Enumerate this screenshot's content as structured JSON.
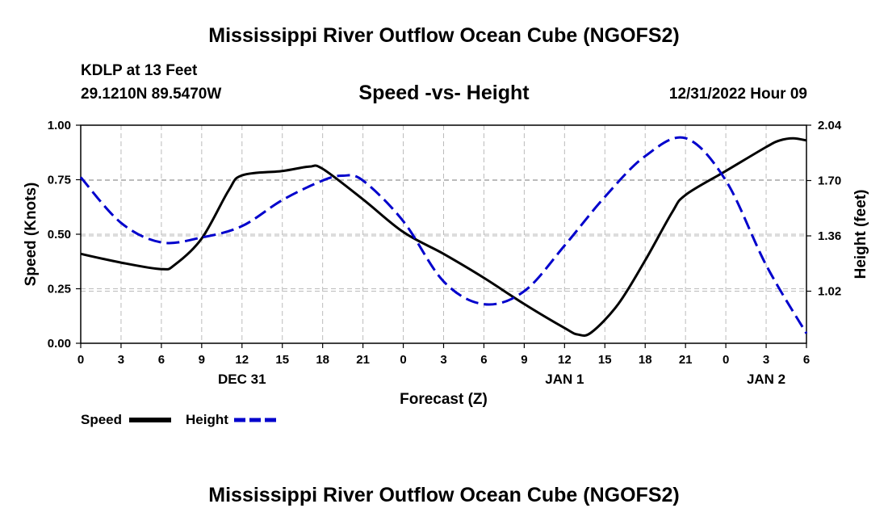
{
  "page": {
    "title_top": "Mississippi River Outflow Ocean Cube (NGOFS2)",
    "title_bottom": "Mississippi River Outflow Ocean Cube (NGOFS2)",
    "station": "KDLP at 13 Feet",
    "coords": "29.1210N  89.5470W",
    "datetime": "12/31/2022 Hour 09"
  },
  "colors": {
    "speed": "#000000",
    "height": "#0000cc",
    "grid": "#bbbbbb"
  },
  "chart_data": {
    "type": "line",
    "title": "Speed -vs- Height",
    "xlabel": "Forecast (Z)",
    "ylabel": "Speed (Knots)",
    "y2label": "Height (feet)",
    "xlim": [
      0,
      54
    ],
    "ylim": [
      0,
      1
    ],
    "y2lim": [
      0.7,
      2.04
    ],
    "x_ticks": [
      0,
      3,
      6,
      9,
      12,
      15,
      18,
      21,
      24,
      27,
      30,
      33,
      36,
      39,
      42,
      45,
      48,
      51,
      54
    ],
    "x_tick_labels": [
      "0",
      "3",
      "6",
      "9",
      "12",
      "15",
      "18",
      "21",
      "0",
      "3",
      "6",
      "9",
      "12",
      "15",
      "18",
      "21",
      "0",
      "3",
      "6"
    ],
    "date_labels": [
      {
        "x": 12,
        "label": "DEC 31"
      },
      {
        "x": 36,
        "label": "JAN 1"
      },
      {
        "x": 51,
        "label": "JAN 2"
      }
    ],
    "y_ticks": [
      0,
      0.25,
      0.5,
      0.75,
      1.0
    ],
    "y_tick_labels": [
      "0.00",
      "0.25",
      "0.50",
      "0.75",
      "1.00"
    ],
    "y2_ticks": [
      1.02,
      1.36,
      1.7,
      2.04
    ],
    "y2_tick_labels": [
      "1.02",
      "1.36",
      "1.70",
      "2.04"
    ],
    "legend": [
      "Speed",
      "Height"
    ],
    "series": [
      {
        "name": "Speed",
        "axis": "left",
        "x": [
          0,
          3,
          6,
          7,
          9,
          11,
          12,
          15,
          17,
          18,
          21,
          24,
          27,
          30,
          33,
          36,
          37,
          38,
          40,
          42,
          44,
          45,
          48,
          51,
          52,
          53,
          54
        ],
        "values": [
          0.41,
          0.37,
          0.34,
          0.36,
          0.48,
          0.7,
          0.77,
          0.79,
          0.81,
          0.8,
          0.66,
          0.51,
          0.41,
          0.3,
          0.18,
          0.07,
          0.04,
          0.05,
          0.18,
          0.38,
          0.6,
          0.68,
          0.79,
          0.9,
          0.93,
          0.94,
          0.93
        ]
      },
      {
        "name": "Height",
        "axis": "right",
        "x": [
          0,
          3,
          6,
          9,
          12,
          15,
          18,
          19.5,
          21,
          24,
          27,
          30,
          33,
          36,
          39,
          42,
          45,
          48,
          51,
          54
        ],
        "values": [
          1.72,
          1.44,
          1.32,
          1.35,
          1.42,
          1.58,
          1.7,
          1.73,
          1.7,
          1.45,
          1.08,
          0.94,
          1.02,
          1.3,
          1.6,
          1.85,
          1.96,
          1.7,
          1.18,
          0.76
        ]
      }
    ]
  }
}
